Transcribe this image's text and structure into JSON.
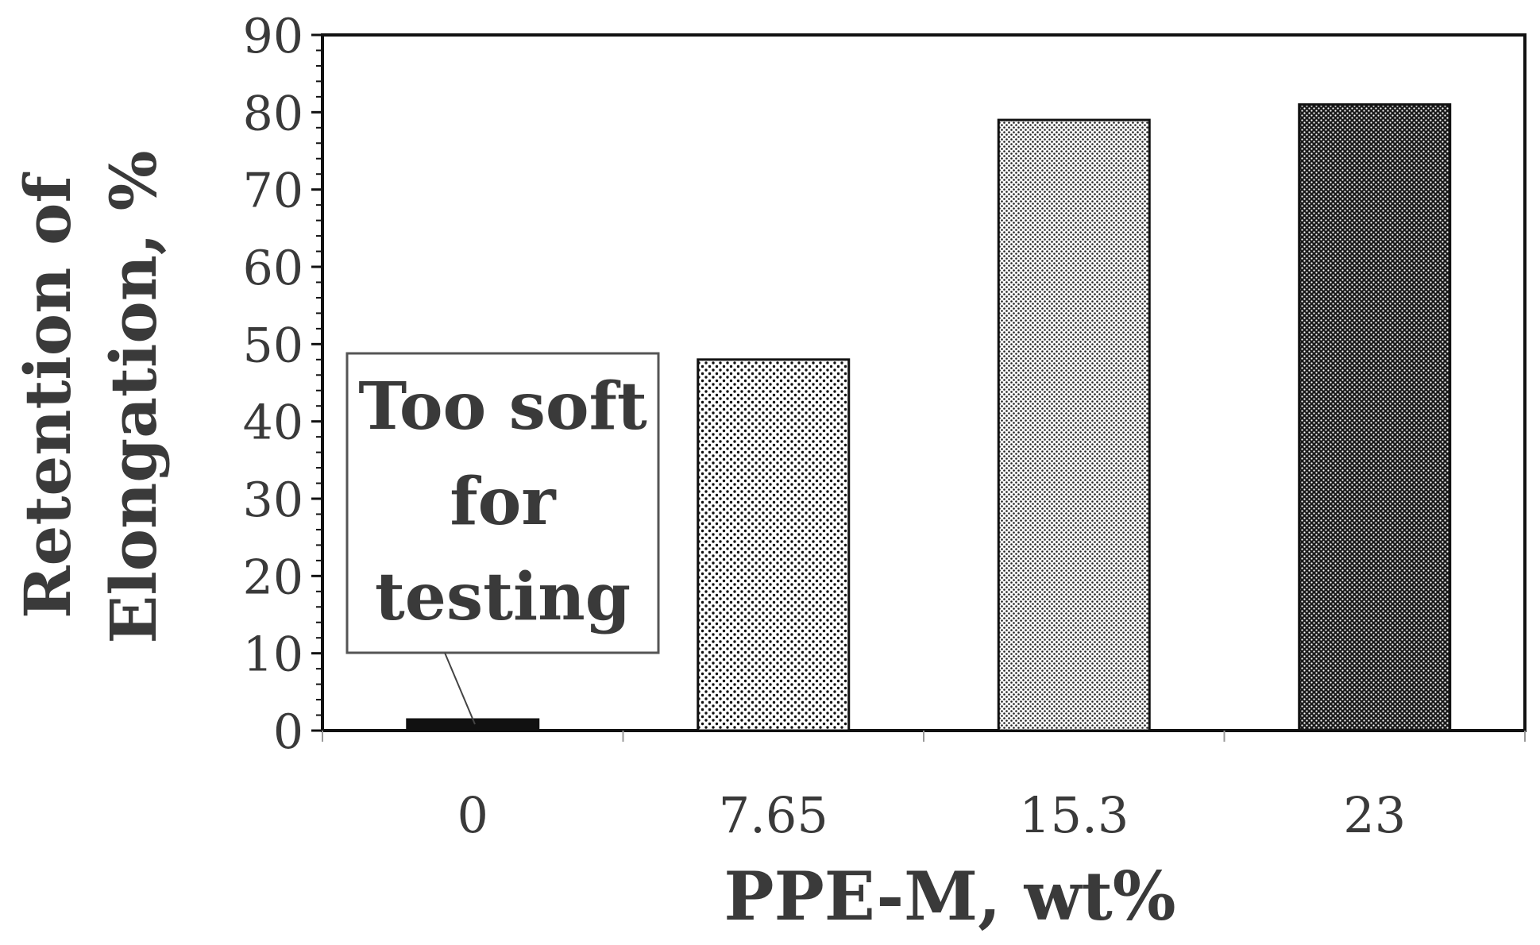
{
  "chart_data": {
    "type": "bar",
    "categories": [
      "0",
      "7.65",
      "15.3",
      "23"
    ],
    "values": [
      0,
      48,
      79,
      81
    ],
    "xlabel": "PPE-M, wt%",
    "ylabel": [
      "Retention of",
      "Elongation, %"
    ],
    "ylim": [
      0,
      90
    ],
    "yticks": [
      "0",
      "10",
      "20",
      "30",
      "40",
      "50",
      "60",
      "70",
      "80",
      "90"
    ],
    "grid": false,
    "legend": "none",
    "annotation": {
      "lines": [
        "Too soft",
        "for",
        "testing"
      ],
      "target_category": "0"
    },
    "bar_patterns": [
      "solid-black",
      "sparse-dots",
      "fine-dots",
      "dense-dots"
    ]
  }
}
